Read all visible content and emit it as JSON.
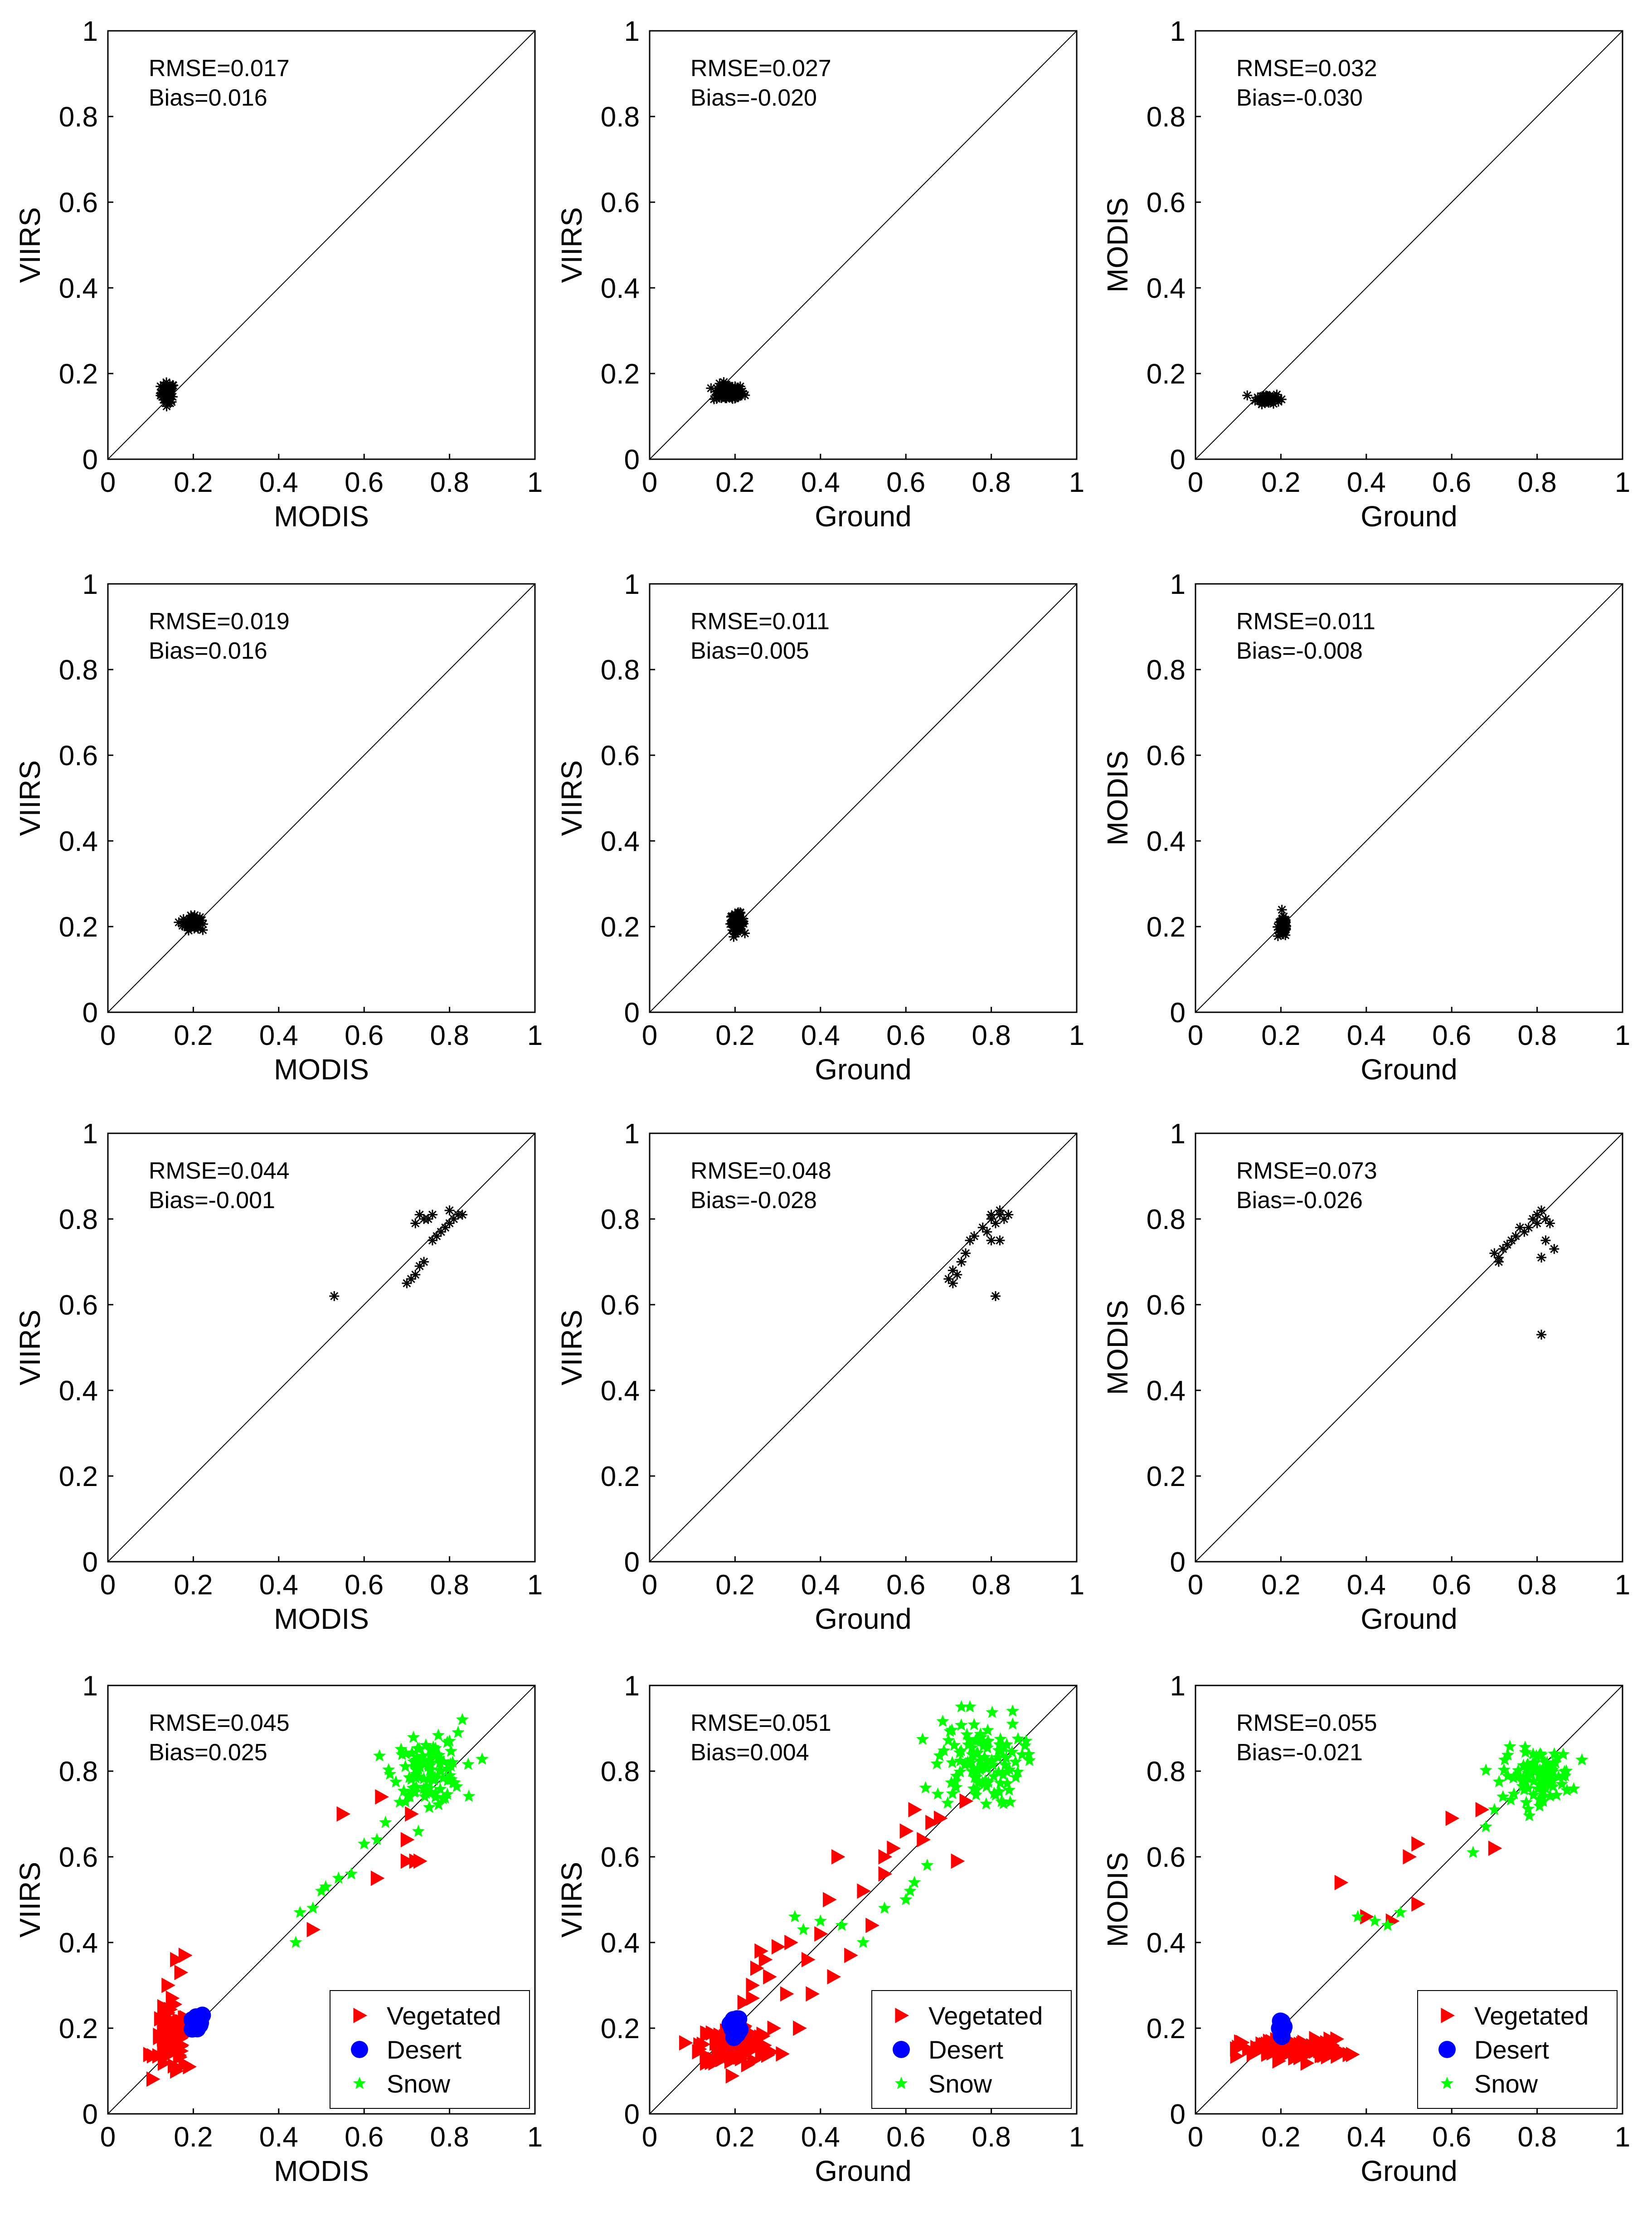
{
  "figure": {
    "description_note": "12 scatter plots in a 4x3 grid comparing albedo from VIIRS, MODIS and ground measurements"
  },
  "colors": {
    "axis": "#000000",
    "one_to_one_line": "#000000",
    "generic_marker": "#000000",
    "vegetated": "#ff0000",
    "desert": "#0000ff",
    "snow": "#00ff00"
  },
  "legend_labels": {
    "vegetated": "Vegetated",
    "desert": "Desert",
    "snow": "Snow"
  },
  "chart_data": [
    {
      "type": "scatter",
      "row": 1,
      "col": 1,
      "xlabel": "MODIS",
      "ylabel": "VIIRS",
      "xlim": [
        0,
        1
      ],
      "ylim": [
        0,
        1
      ],
      "rmse": "RMSE=0.017",
      "bias": "Bias=0.016",
      "reference_line": "1:1",
      "clusters": [
        {
          "class": "generic",
          "marker": "asterisk",
          "cx": 0.14,
          "cy": 0.155,
          "sx": 0.008,
          "sy": 0.012,
          "n": 60
        }
      ],
      "points": []
    },
    {
      "type": "scatter",
      "row": 1,
      "col": 2,
      "xlabel": "Ground",
      "ylabel": "VIIRS",
      "xlim": [
        0,
        1
      ],
      "ylim": [
        0,
        1
      ],
      "rmse": "RMSE=0.027",
      "bias": "Bias=-0.020",
      "reference_line": "1:1",
      "clusters": [
        {
          "class": "generic",
          "marker": "asterisk",
          "cx": 0.185,
          "cy": 0.155,
          "sx": 0.018,
          "sy": 0.01,
          "n": 70
        }
      ],
      "points": [
        [
          0.2,
          0.17
        ]
      ]
    },
    {
      "type": "scatter",
      "row": 1,
      "col": 3,
      "xlabel": "Ground",
      "ylabel": "MODIS",
      "xlim": [
        0,
        1
      ],
      "ylim": [
        0,
        1
      ],
      "rmse": "RMSE=0.032",
      "bias": "Bias=-0.030",
      "reference_line": "1:1",
      "clusters": [
        {
          "class": "generic",
          "marker": "asterisk",
          "cx": 0.17,
          "cy": 0.142,
          "sx": 0.014,
          "sy": 0.006,
          "n": 60
        }
      ],
      "points": []
    },
    {
      "type": "scatter",
      "row": 2,
      "col": 1,
      "xlabel": "MODIS",
      "ylabel": "VIIRS",
      "xlim": [
        0,
        1
      ],
      "ylim": [
        0,
        1
      ],
      "rmse": "RMSE=0.019",
      "bias": "Bias=0.016",
      "reference_line": "1:1",
      "clusters": [
        {
          "class": "generic",
          "marker": "asterisk",
          "cx": 0.195,
          "cy": 0.208,
          "sx": 0.01,
          "sy": 0.008,
          "n": 60
        }
      ],
      "points": [
        [
          0.22,
          0.215
        ]
      ]
    },
    {
      "type": "scatter",
      "row": 2,
      "col": 2,
      "xlabel": "Ground",
      "ylabel": "VIIRS",
      "xlim": [
        0,
        1
      ],
      "ylim": [
        0,
        1
      ],
      "rmse": "RMSE=0.011",
      "bias": "Bias=0.005",
      "reference_line": "1:1",
      "clusters": [
        {
          "class": "generic",
          "marker": "asterisk",
          "cx": 0.205,
          "cy": 0.21,
          "sx": 0.008,
          "sy": 0.01,
          "n": 70
        }
      ],
      "points": []
    },
    {
      "type": "scatter",
      "row": 2,
      "col": 3,
      "xlabel": "Ground",
      "ylabel": "MODIS",
      "xlim": [
        0,
        1
      ],
      "ylim": [
        0,
        1
      ],
      "rmse": "RMSE=0.011",
      "bias": "Bias=-0.008",
      "reference_line": "1:1",
      "clusters": [
        {
          "class": "generic",
          "marker": "asterisk",
          "cx": 0.205,
          "cy": 0.2,
          "sx": 0.006,
          "sy": 0.012,
          "n": 60
        }
      ],
      "points": []
    },
    {
      "type": "scatter",
      "row": 3,
      "col": 1,
      "xlabel": "MODIS",
      "ylabel": "VIIRS",
      "xlim": [
        0,
        1
      ],
      "ylim": [
        0,
        1
      ],
      "rmse": "RMSE=0.044",
      "bias": "Bias=-0.001",
      "reference_line": "1:1",
      "clusters": [],
      "points": [
        [
          0.53,
          0.62
        ],
        [
          0.7,
          0.65
        ],
        [
          0.71,
          0.66
        ],
        [
          0.72,
          0.67
        ],
        [
          0.73,
          0.69
        ],
        [
          0.74,
          0.7
        ],
        [
          0.72,
          0.79
        ],
        [
          0.73,
          0.81
        ],
        [
          0.74,
          0.8
        ],
        [
          0.75,
          0.8
        ],
        [
          0.76,
          0.81
        ],
        [
          0.77,
          0.76
        ],
        [
          0.78,
          0.77
        ],
        [
          0.79,
          0.78
        ],
        [
          0.8,
          0.82
        ],
        [
          0.81,
          0.8
        ],
        [
          0.82,
          0.81
        ],
        [
          0.83,
          0.81
        ],
        [
          0.76,
          0.75
        ],
        [
          0.8,
          0.79
        ]
      ]
    },
    {
      "type": "scatter",
      "row": 3,
      "col": 2,
      "xlabel": "Ground",
      "ylabel": "VIIRS",
      "xlim": [
        0,
        1
      ],
      "ylim": [
        0,
        1
      ],
      "rmse": "RMSE=0.048",
      "bias": "Bias=-0.028",
      "reference_line": "1:1",
      "clusters": [],
      "points": [
        [
          0.7,
          0.66
        ],
        [
          0.71,
          0.68
        ],
        [
          0.72,
          0.67
        ],
        [
          0.71,
          0.65
        ],
        [
          0.73,
          0.7
        ],
        [
          0.74,
          0.72
        ],
        [
          0.75,
          0.75
        ],
        [
          0.76,
          0.76
        ],
        [
          0.78,
          0.78
        ],
        [
          0.79,
          0.77
        ],
        [
          0.8,
          0.8
        ],
        [
          0.81,
          0.79
        ],
        [
          0.82,
          0.81
        ],
        [
          0.83,
          0.8
        ],
        [
          0.84,
          0.81
        ],
        [
          0.82,
          0.82
        ],
        [
          0.8,
          0.75
        ],
        [
          0.82,
          0.75
        ],
        [
          0.81,
          0.62
        ],
        [
          0.8,
          0.81
        ]
      ]
    },
    {
      "type": "scatter",
      "row": 3,
      "col": 3,
      "xlabel": "Ground",
      "ylabel": "MODIS",
      "xlim": [
        0,
        1
      ],
      "ylim": [
        0,
        1
      ],
      "rmse": "RMSE=0.073",
      "bias": "Bias=-0.026",
      "reference_line": "1:1",
      "clusters": [],
      "points": [
        [
          0.7,
          0.72
        ],
        [
          0.71,
          0.7
        ],
        [
          0.72,
          0.73
        ],
        [
          0.71,
          0.71
        ],
        [
          0.73,
          0.74
        ],
        [
          0.75,
          0.76
        ],
        [
          0.76,
          0.78
        ],
        [
          0.78,
          0.78
        ],
        [
          0.79,
          0.8
        ],
        [
          0.8,
          0.81
        ],
        [
          0.81,
          0.82
        ],
        [
          0.82,
          0.8
        ],
        [
          0.83,
          0.79
        ],
        [
          0.84,
          0.73
        ],
        [
          0.82,
          0.75
        ],
        [
          0.81,
          0.71
        ],
        [
          0.81,
          0.53
        ],
        [
          0.8,
          0.79
        ],
        [
          0.74,
          0.75
        ],
        [
          0.77,
          0.77
        ]
      ]
    },
    {
      "type": "scatter",
      "row": 4,
      "col": 1,
      "xlabel": "MODIS",
      "ylabel": "VIIRS",
      "xlim": [
        0,
        1
      ],
      "ylim": [
        0,
        1
      ],
      "rmse": "RMSE=0.045",
      "bias": "Bias=0.025",
      "reference_line": "1:1",
      "legend": "bottom-right",
      "clusters": [
        {
          "class": "vegetated",
          "marker": "triangle",
          "cx": 0.15,
          "cy": 0.17,
          "sx": 0.02,
          "sy": 0.035,
          "n": 80
        },
        {
          "class": "snow",
          "marker": "star",
          "cx": 0.75,
          "cy": 0.8,
          "sx": 0.04,
          "sy": 0.035,
          "n": 110
        },
        {
          "class": "desert",
          "marker": "circle",
          "cx": 0.205,
          "cy": 0.21,
          "sx": 0.008,
          "sy": 0.01,
          "n": 16
        }
      ],
      "points_by_class": {
        "vegetated": [
          [
            0.16,
            0.36
          ],
          [
            0.18,
            0.37
          ],
          [
            0.14,
            0.3
          ],
          [
            0.17,
            0.33
          ],
          [
            0.15,
            0.27
          ],
          [
            0.13,
            0.25
          ],
          [
            0.16,
            0.1
          ],
          [
            0.19,
            0.11
          ],
          [
            0.48,
            0.43
          ],
          [
            0.55,
            0.7
          ],
          [
            0.64,
            0.74
          ],
          [
            0.63,
            0.55
          ],
          [
            0.7,
            0.59
          ],
          [
            0.72,
            0.59
          ],
          [
            0.73,
            0.59
          ],
          [
            0.7,
            0.64
          ],
          [
            0.71,
            0.7
          ]
        ],
        "snow": [
          [
            0.44,
            0.4
          ],
          [
            0.45,
            0.47
          ],
          [
            0.48,
            0.48
          ],
          [
            0.5,
            0.52
          ],
          [
            0.51,
            0.53
          ],
          [
            0.54,
            0.55
          ],
          [
            0.57,
            0.56
          ],
          [
            0.6,
            0.63
          ],
          [
            0.63,
            0.64
          ],
          [
            0.65,
            0.68
          ],
          [
            0.83,
            0.92
          ],
          [
            0.82,
            0.89
          ],
          [
            0.8,
            0.87
          ]
        ],
        "desert": []
      }
    },
    {
      "type": "scatter",
      "row": 4,
      "col": 2,
      "xlabel": "Ground",
      "ylabel": "VIIRS",
      "xlim": [
        0,
        1
      ],
      "ylim": [
        0,
        1
      ],
      "rmse": "RMSE=0.051",
      "bias": "Bias=0.004",
      "reference_line": "1:1",
      "legend": "bottom-right",
      "clusters": [
        {
          "class": "vegetated",
          "marker": "triangle",
          "cx": 0.2,
          "cy": 0.16,
          "sx": 0.04,
          "sy": 0.025,
          "n": 120
        },
        {
          "class": "snow",
          "marker": "star",
          "cx": 0.77,
          "cy": 0.82,
          "sx": 0.05,
          "sy": 0.05,
          "n": 110
        },
        {
          "class": "desert",
          "marker": "circle",
          "cx": 0.2,
          "cy": 0.205,
          "sx": 0.006,
          "sy": 0.012,
          "n": 14
        }
      ],
      "points_by_class": {
        "vegetated": [
          [
            0.24,
            0.3
          ],
          [
            0.25,
            0.34
          ],
          [
            0.26,
            0.38
          ],
          [
            0.27,
            0.36
          ],
          [
            0.28,
            0.32
          ],
          [
            0.3,
            0.39
          ],
          [
            0.22,
            0.26
          ],
          [
            0.24,
            0.27
          ],
          [
            0.32,
            0.28
          ],
          [
            0.35,
            0.2
          ],
          [
            0.38,
            0.28
          ],
          [
            0.4,
            0.42
          ],
          [
            0.42,
            0.5
          ],
          [
            0.44,
            0.6
          ],
          [
            0.47,
            0.37
          ],
          [
            0.5,
            0.52
          ],
          [
            0.52,
            0.44
          ],
          [
            0.55,
            0.56
          ],
          [
            0.57,
            0.62
          ],
          [
            0.6,
            0.66
          ],
          [
            0.62,
            0.71
          ],
          [
            0.64,
            0.64
          ],
          [
            0.66,
            0.68
          ],
          [
            0.68,
            0.69
          ],
          [
            0.72,
            0.59
          ],
          [
            0.74,
            0.73
          ],
          [
            0.55,
            0.6
          ],
          [
            0.37,
            0.36
          ],
          [
            0.33,
            0.4
          ],
          [
            0.43,
            0.32
          ],
          [
            0.29,
            0.2
          ],
          [
            0.31,
            0.14
          ]
        ],
        "snow": [
          [
            0.34,
            0.46
          ],
          [
            0.36,
            0.43
          ],
          [
            0.4,
            0.45
          ],
          [
            0.45,
            0.44
          ],
          [
            0.5,
            0.4
          ],
          [
            0.55,
            0.48
          ],
          [
            0.6,
            0.5
          ],
          [
            0.62,
            0.54
          ],
          [
            0.61,
            0.52
          ],
          [
            0.65,
            0.58
          ],
          [
            0.73,
            0.95
          ],
          [
            0.75,
            0.95
          ],
          [
            0.85,
            0.94
          ]
        ],
        "desert": []
      }
    },
    {
      "type": "scatter",
      "row": 4,
      "col": 3,
      "xlabel": "Ground",
      "ylabel": "MODIS",
      "xlim": [
        0,
        1
      ],
      "ylim": [
        0,
        1
      ],
      "rmse": "RMSE=0.055",
      "bias": "Bias=-0.021",
      "reference_line": "1:1",
      "legend": "bottom-right",
      "clusters": [
        {
          "class": "vegetated",
          "marker": "triangle",
          "cx": 0.23,
          "cy": 0.15,
          "sx": 0.06,
          "sy": 0.012,
          "n": 110
        },
        {
          "class": "snow",
          "marker": "star",
          "cx": 0.8,
          "cy": 0.79,
          "sx": 0.04,
          "sy": 0.03,
          "n": 100
        },
        {
          "class": "desert",
          "marker": "circle",
          "cx": 0.205,
          "cy": 0.2,
          "sx": 0.005,
          "sy": 0.012,
          "n": 12
        }
      ],
      "points_by_class": {
        "vegetated": [
          [
            0.34,
            0.54
          ],
          [
            0.4,
            0.46
          ],
          [
            0.46,
            0.45
          ],
          [
            0.5,
            0.6
          ],
          [
            0.52,
            0.63
          ],
          [
            0.52,
            0.49
          ],
          [
            0.6,
            0.69
          ],
          [
            0.67,
            0.71
          ],
          [
            0.7,
            0.62
          ],
          [
            0.32,
            0.16
          ],
          [
            0.34,
            0.14
          ]
        ],
        "snow": [
          [
            0.38,
            0.46
          ],
          [
            0.42,
            0.45
          ],
          [
            0.45,
            0.44
          ],
          [
            0.48,
            0.47
          ],
          [
            0.65,
            0.61
          ],
          [
            0.68,
            0.67
          ],
          [
            0.7,
            0.71
          ],
          [
            0.72,
            0.74
          ]
        ],
        "desert": []
      }
    }
  ]
}
